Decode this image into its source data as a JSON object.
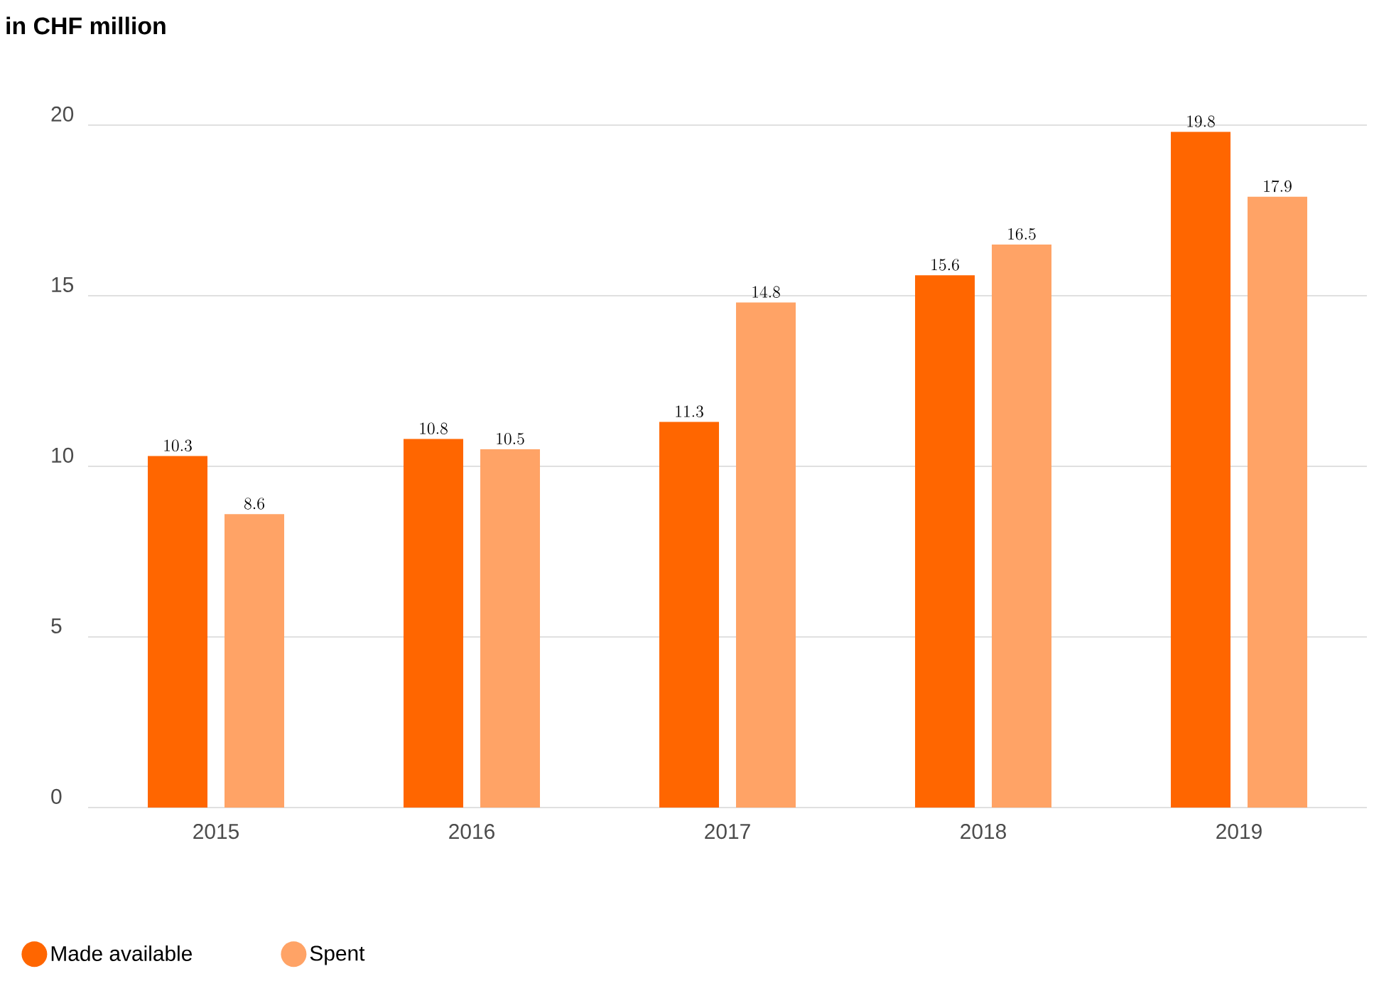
{
  "chart_data": {
    "type": "bar",
    "title": "in CHF million",
    "categories": [
      "2015",
      "2016",
      "2017",
      "2018",
      "2019"
    ],
    "series": [
      {
        "name": "Made available",
        "color": "#ff6600",
        "values": [
          10.3,
          10.8,
          11.3,
          15.6,
          19.8
        ]
      },
      {
        "name": "Spent",
        "color": "#ffa366",
        "values": [
          8.6,
          10.5,
          14.8,
          16.5,
          17.9
        ]
      }
    ],
    "ylim": [
      0,
      20
    ],
    "yticks": [
      0,
      5,
      10,
      15,
      20
    ],
    "grid": "y",
    "legend": "bottom left",
    "data_labels": true
  }
}
